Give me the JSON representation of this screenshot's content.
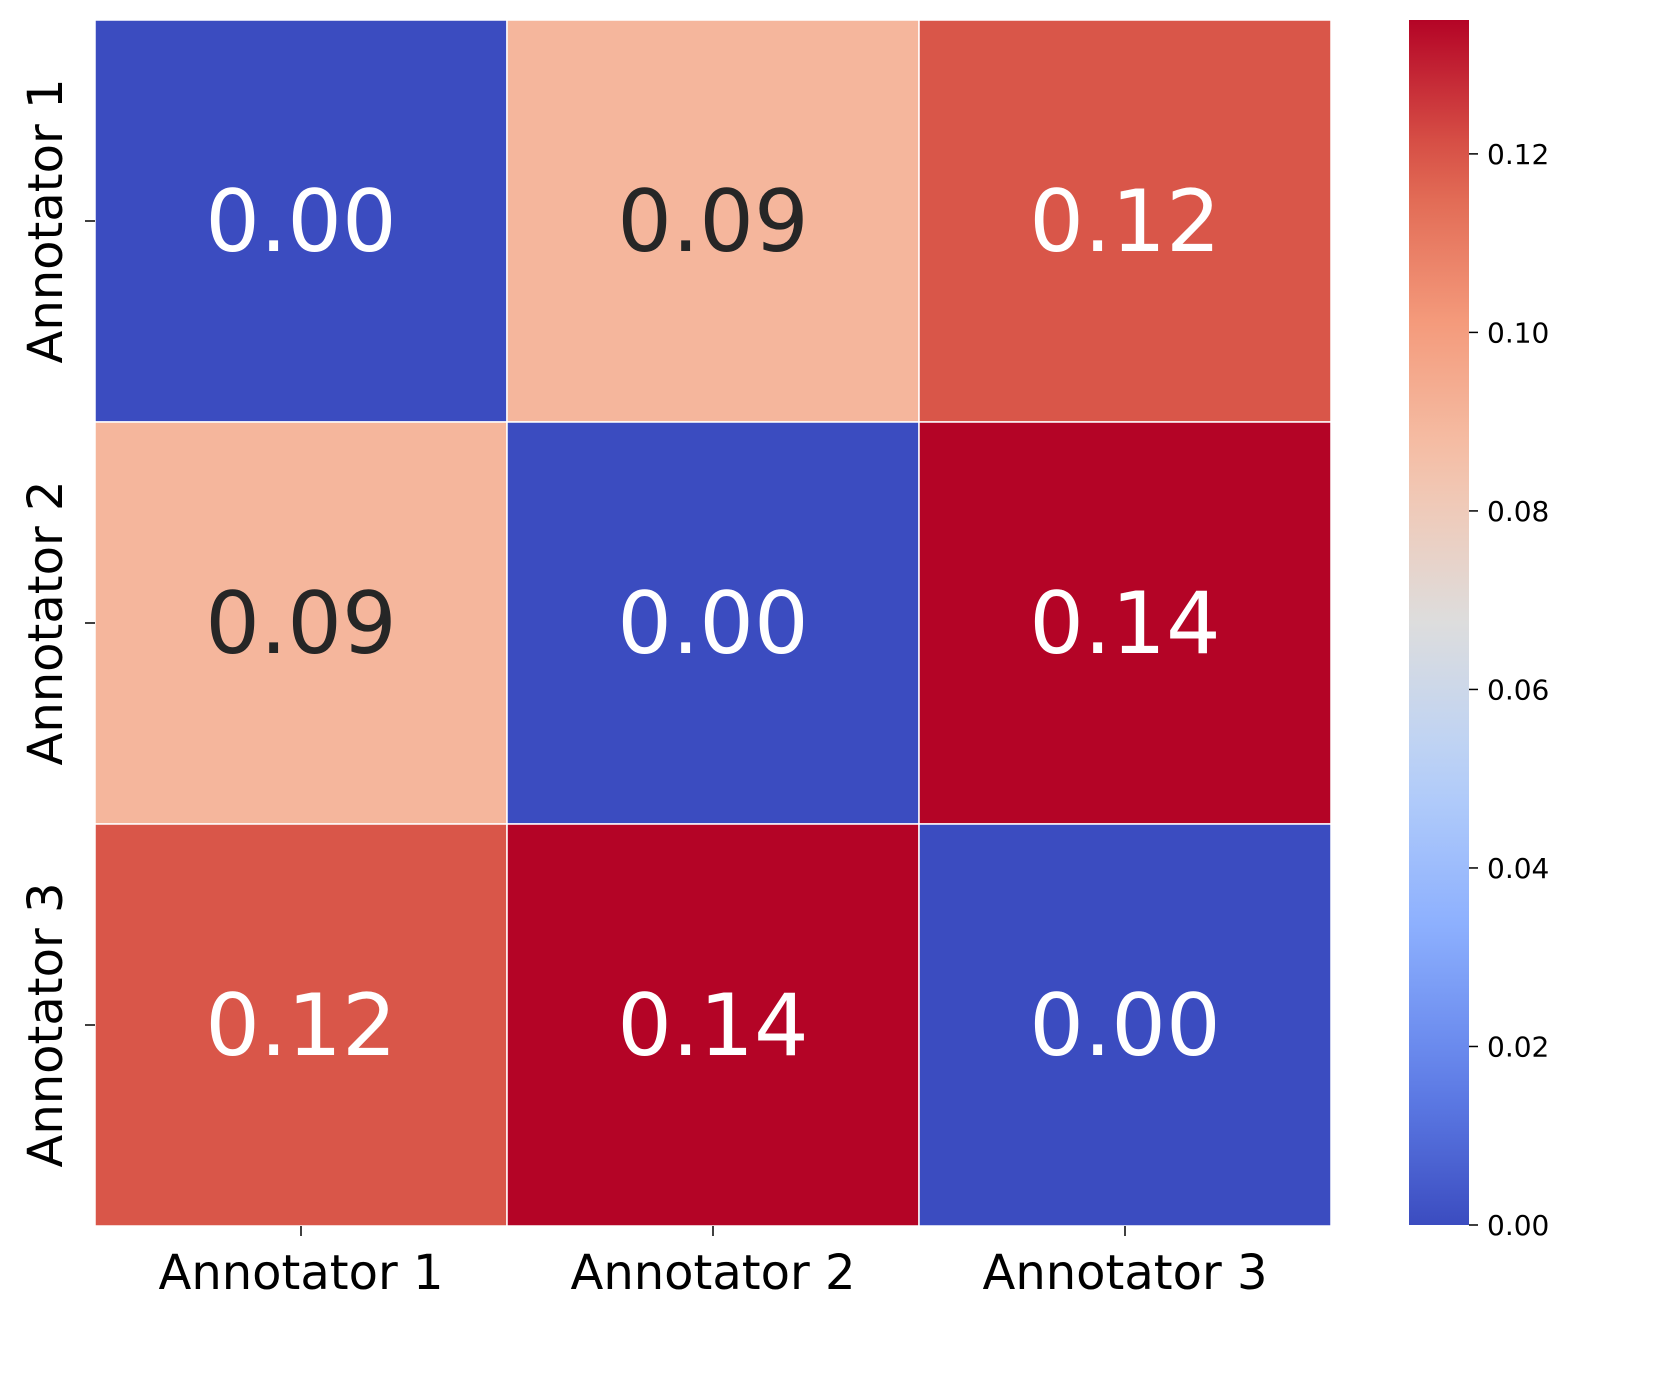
{
  "chart_data": {
    "type": "heatmap",
    "title": "",
    "xlabel": "",
    "ylabel": "",
    "x_categories": [
      "Annotator 1",
      "Annotator 2",
      "Annotator 3"
    ],
    "y_categories": [
      "Annotator 1",
      "Annotator 2",
      "Annotator 3"
    ],
    "values": [
      [
        0.0,
        0.09,
        0.12
      ],
      [
        0.09,
        0.0,
        0.14
      ],
      [
        0.12,
        0.14,
        0.0
      ]
    ],
    "cell_labels": [
      [
        "0.00",
        "0.09",
        "0.12"
      ],
      [
        "0.09",
        "0.00",
        "0.14"
      ],
      [
        "0.12",
        "0.14",
        "0.00"
      ]
    ],
    "colorbar": {
      "colormap": "coolwarm",
      "range": [
        0,
        0.135
      ],
      "ticks": [
        0.0,
        0.02,
        0.04,
        0.06,
        0.08,
        0.1,
        0.12
      ],
      "tick_labels": [
        "0.00",
        "0.02",
        "0.04",
        "0.06",
        "0.08",
        "0.10",
        "0.12"
      ]
    },
    "cell_border_color": "#ffffff",
    "text_dark_color": "#262626",
    "text_light_color": "#ffffff"
  }
}
